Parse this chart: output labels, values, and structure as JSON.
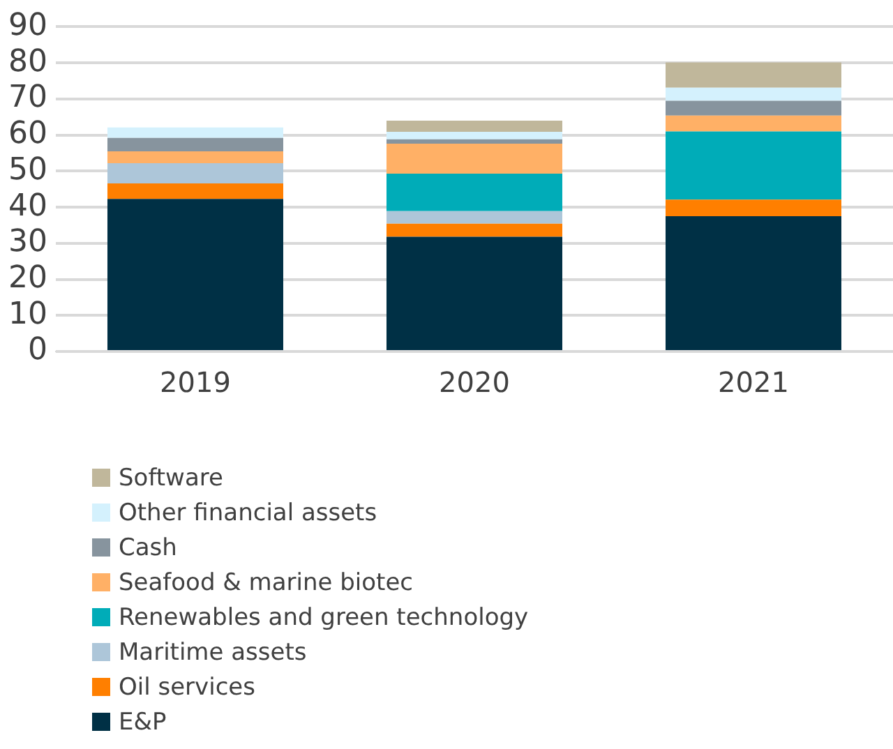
{
  "chart_data": {
    "type": "bar",
    "stacked": true,
    "categories": [
      "2019",
      "2020",
      "2021"
    ],
    "series": [
      {
        "name": "E&P",
        "color": "#003045",
        "values": [
          42.3,
          31.8,
          37.5
        ]
      },
      {
        "name": "Oil services",
        "color": "#ff7f00",
        "values": [
          4.3,
          3.6,
          4.6
        ]
      },
      {
        "name": "Maritime assets",
        "color": "#adc6d9",
        "values": [
          5.6,
          3.5,
          0
        ]
      },
      {
        "name": "Renewables and green technology",
        "color": "#00acb8",
        "values": [
          0,
          10.4,
          18.9
        ]
      },
      {
        "name": "Seafood & marine biotec",
        "color": "#ffb066",
        "values": [
          3.3,
          8.3,
          4.4
        ]
      },
      {
        "name": "Cash",
        "color": "#87949e",
        "values": [
          3.7,
          1.2,
          4.1
        ]
      },
      {
        "name": "Other financial assets",
        "color": "#d4f1fd",
        "values": [
          2.9,
          2.1,
          3.6
        ]
      },
      {
        "name": "Software",
        "color": "#c0b79b",
        "values": [
          0,
          3.1,
          7.0
        ]
      }
    ],
    "ylim": [
      0,
      90
    ],
    "yticks": [
      0,
      10,
      20,
      30,
      40,
      50,
      60,
      70,
      80,
      90
    ],
    "grid": "y",
    "legend": "bottom"
  }
}
